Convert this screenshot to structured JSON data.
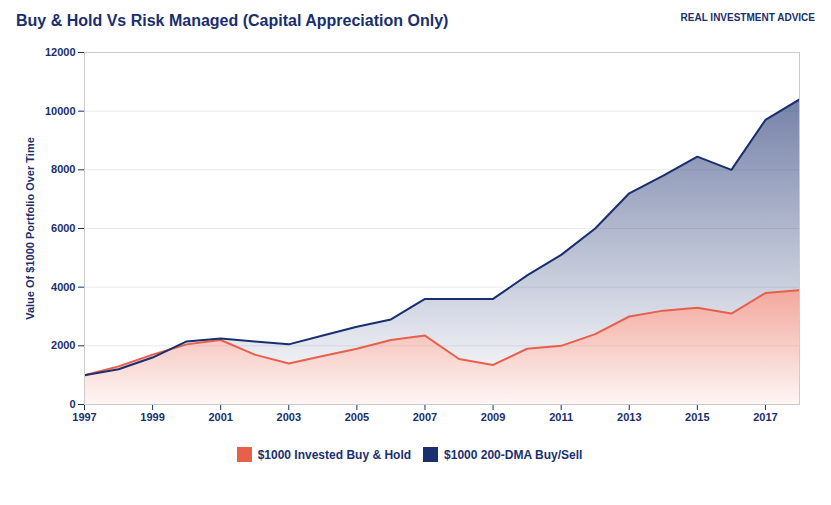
{
  "chart_data": {
    "type": "line",
    "title": "Buy & Hold Vs Risk Managed (Capital Appreciation Only)",
    "ylabel": "Value Of $1000 Portfolio Over Time",
    "annotations": [
      "REAL INVESTMENT ADVICE"
    ],
    "x": [
      1997,
      1998,
      1999,
      2000,
      2001,
      2002,
      2003,
      2004,
      2005,
      2006,
      2007,
      2008,
      2009,
      2010,
      2011,
      2012,
      2013,
      2014,
      2015,
      2016,
      2017,
      2018
    ],
    "series": [
      {
        "name": "$1000 Invested Buy & Hold",
        "color": "#e8604c",
        "values": [
          1000,
          1300,
          1700,
          2050,
          2200,
          1700,
          1400,
          1650,
          1900,
          2200,
          2350,
          1550,
          1350,
          1900,
          2000,
          2400,
          3000,
          3200,
          3300,
          3100,
          3800,
          3900
        ]
      },
      {
        "name": "$1000 200-DMA Buy/Sell",
        "color": "#1a2f6e",
        "values": [
          1000,
          1200,
          1600,
          2150,
          2250,
          2150,
          2050,
          2350,
          2650,
          2900,
          3600,
          3600,
          3600,
          4400,
          5100,
          6000,
          7200,
          7800,
          8450,
          8000,
          9700,
          10400
        ]
      }
    ],
    "xlim": [
      1997,
      2018
    ],
    "xticks": [
      1997,
      1999,
      2001,
      2003,
      2005,
      2007,
      2009,
      2011,
      2013,
      2015,
      2017
    ],
    "ylim": [
      0,
      12000
    ],
    "yticks": [
      0,
      2000,
      4000,
      6000,
      8000,
      10000,
      12000
    ],
    "grid": true,
    "legend": "bottom"
  }
}
